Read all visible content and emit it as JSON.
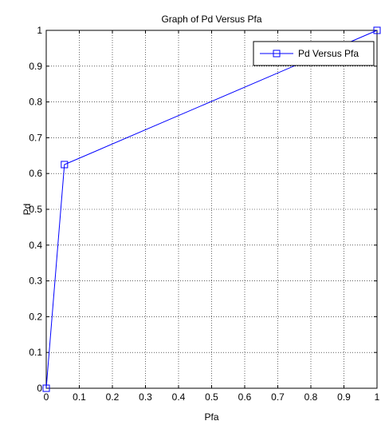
{
  "chart_data": {
    "type": "line",
    "title": "Graph of Pd Versus Pfa",
    "xlabel": "Pfa",
    "ylabel": "Pd",
    "xlim": [
      0,
      1
    ],
    "ylim": [
      0,
      1
    ],
    "xticks": [
      "0",
      "0.1",
      "0.2",
      "0.3",
      "0.4",
      "0.5",
      "0.6",
      "0.7",
      "0.8",
      "0.9",
      "1"
    ],
    "yticks": [
      "0",
      "0.1",
      "0.2",
      "0.3",
      "0.4",
      "0.5",
      "0.6",
      "0.7",
      "0.8",
      "0.9",
      "1"
    ],
    "grid": true,
    "legend_position": "top-right",
    "series": [
      {
        "name": "Pd Versus Pfa",
        "color": "#0000ff",
        "marker": "square",
        "x": [
          0,
          0.055,
          1
        ],
        "y": [
          0,
          0.625,
          1
        ]
      }
    ]
  }
}
